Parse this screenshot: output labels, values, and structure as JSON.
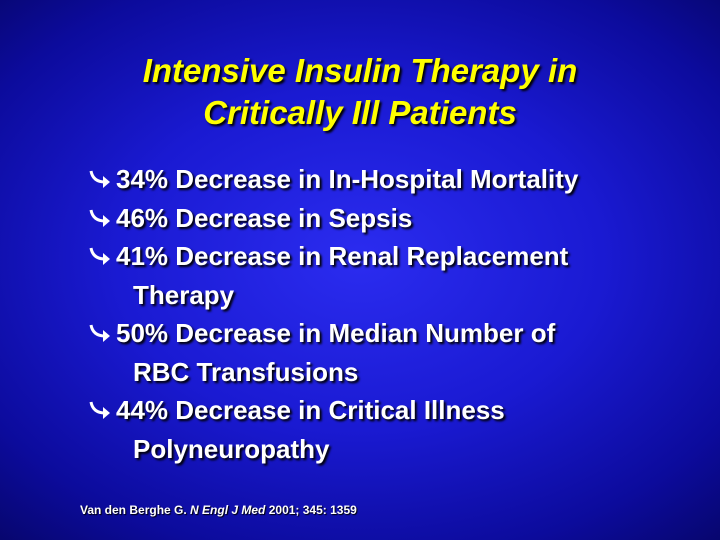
{
  "slide": {
    "title_lines": [
      "Intensive Insulin Therapy in",
      "Critically Ill Patients"
    ],
    "bullets": [
      {
        "lines": [
          "34% Decrease in In-Hospital Mortality"
        ]
      },
      {
        "lines": [
          "46% Decrease in Sepsis"
        ]
      },
      {
        "lines": [
          "41% Decrease in Renal Replacement",
          "Therapy"
        ]
      },
      {
        "lines": [
          "50% Decrease in Median Number of",
          "RBC Transfusions"
        ]
      },
      {
        "lines": [
          "44% Decrease in Critical Illness",
          "Polyneuropathy"
        ]
      }
    ],
    "citation": {
      "author": "Van den Berghe G.",
      "journal": "N Engl J Med",
      "details": "2001; 345: 1359"
    },
    "colors": {
      "title": "#ffff00",
      "text": "#ffffff",
      "background": "#1a1ad2"
    },
    "bullet_icon": "curved-arrow-icon"
  }
}
